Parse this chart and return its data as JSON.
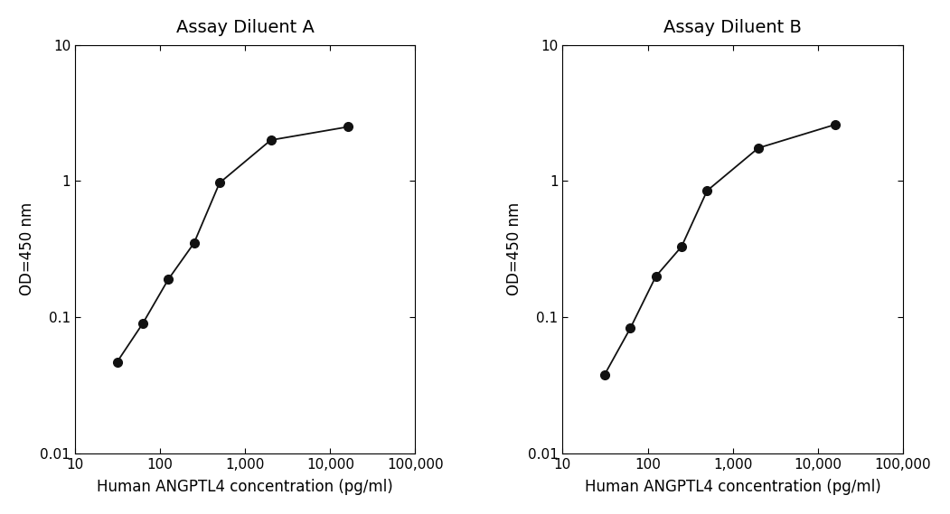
{
  "panel_A": {
    "title": "Assay Diluent A",
    "x": [
      31.25,
      62.5,
      125,
      250,
      500,
      2000,
      16000
    ],
    "y": [
      0.047,
      0.09,
      0.19,
      0.35,
      0.97,
      2.0,
      2.5
    ]
  },
  "panel_B": {
    "title": "Assay Diluent B",
    "x": [
      31.25,
      62.5,
      125,
      250,
      500,
      2000,
      16000
    ],
    "y": [
      0.038,
      0.083,
      0.2,
      0.33,
      0.85,
      1.75,
      2.6
    ]
  },
  "shared": {
    "xlabel": "Human ANGPTL4 concentration (pg/ml)",
    "ylabel": "OD=450 nm",
    "xlim": [
      10,
      100000
    ],
    "ylim": [
      0.01,
      10
    ],
    "xticks": [
      10,
      100,
      1000,
      10000,
      100000
    ],
    "xticklabels": [
      "10",
      "100",
      "1,000",
      "10,000",
      "100,000"
    ],
    "yticks": [
      0.01,
      0.1,
      1,
      10
    ],
    "yticklabels": [
      "0.01",
      "0.1",
      "1",
      "10"
    ],
    "line_color": "#111111",
    "marker": "o",
    "markersize": 7,
    "linewidth": 1.3,
    "background_color": "#ffffff",
    "title_fontsize": 14,
    "label_fontsize": 12,
    "tick_fontsize": 11
  }
}
